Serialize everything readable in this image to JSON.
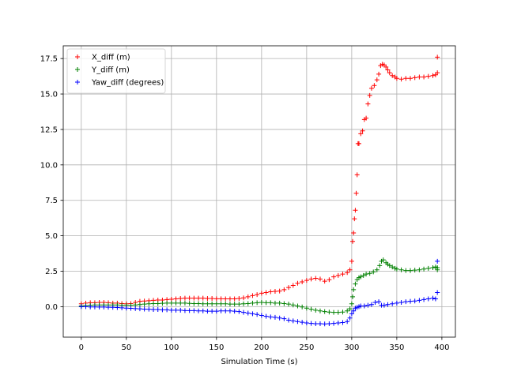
{
  "chart_data": {
    "type": "scatter",
    "xlabel": "Simulation Time (s)",
    "ylabel": "",
    "xlim": [
      -20,
      415
    ],
    "ylim": [
      -2.15,
      18.4
    ],
    "xticks": [
      0,
      50,
      100,
      150,
      200,
      250,
      300,
      350,
      400
    ],
    "xtick_labels": [
      "0",
      "50",
      "100",
      "150",
      "200",
      "250",
      "300",
      "350",
      "400"
    ],
    "yticks": [
      0.0,
      2.5,
      5.0,
      7.5,
      10.0,
      12.5,
      15.0,
      17.5
    ],
    "ytick_labels": [
      "0.0",
      "2.5",
      "5.0",
      "7.5",
      "10.0",
      "12.5",
      "15.0",
      "17.5"
    ],
    "grid": true,
    "legend_position": "top-left",
    "marker": "+",
    "series": [
      {
        "name": "X_diff (m)",
        "color": "#ff0000",
        "x": [
          0,
          5,
          10,
          15,
          20,
          25,
          30,
          35,
          40,
          45,
          50,
          55,
          60,
          65,
          70,
          75,
          80,
          85,
          90,
          95,
          100,
          105,
          110,
          115,
          120,
          125,
          130,
          135,
          140,
          145,
          150,
          155,
          160,
          165,
          170,
          175,
          180,
          185,
          190,
          195,
          200,
          205,
          210,
          215,
          220,
          225,
          230,
          235,
          240,
          245,
          250,
          255,
          260,
          265,
          270,
          275,
          280,
          285,
          290,
          295,
          298,
          300,
          301,
          302,
          303,
          304,
          305,
          306,
          307,
          308,
          310,
          312,
          314,
          316,
          318,
          320,
          322,
          325,
          328,
          330,
          332,
          334,
          336,
          338,
          340,
          342,
          345,
          348,
          350,
          355,
          360,
          365,
          370,
          375,
          380,
          385,
          390,
          393,
          395,
          395
        ],
        "y": [
          0.2,
          0.25,
          0.28,
          0.28,
          0.3,
          0.3,
          0.28,
          0.25,
          0.25,
          0.22,
          0.2,
          0.22,
          0.3,
          0.38,
          0.4,
          0.42,
          0.45,
          0.47,
          0.47,
          0.5,
          0.52,
          0.55,
          0.58,
          0.6,
          0.6,
          0.6,
          0.6,
          0.6,
          0.58,
          0.58,
          0.56,
          0.56,
          0.55,
          0.55,
          0.55,
          0.58,
          0.62,
          0.7,
          0.78,
          0.85,
          0.95,
          1.0,
          1.05,
          1.08,
          1.1,
          1.2,
          1.35,
          1.5,
          1.65,
          1.75,
          1.85,
          1.95,
          2.0,
          1.95,
          1.8,
          1.9,
          2.1,
          2.2,
          2.3,
          2.4,
          2.6,
          3.2,
          4.6,
          5.2,
          6.2,
          6.8,
          8.0,
          9.3,
          11.5,
          11.5,
          12.2,
          12.4,
          13.2,
          13.3,
          14.3,
          14.9,
          15.4,
          15.6,
          16.0,
          16.4,
          17.0,
          17.1,
          17.05,
          16.9,
          16.7,
          16.5,
          16.3,
          16.2,
          16.1,
          16.05,
          16.1,
          16.1,
          16.15,
          16.2,
          16.2,
          16.25,
          16.3,
          16.35,
          16.5,
          17.6
        ]
      },
      {
        "name": "Y_diff (m)",
        "color": "#008000",
        "x": [
          0,
          5,
          10,
          15,
          20,
          25,
          30,
          35,
          40,
          45,
          50,
          55,
          60,
          65,
          70,
          75,
          80,
          85,
          90,
          95,
          100,
          105,
          110,
          115,
          120,
          125,
          130,
          135,
          140,
          145,
          150,
          155,
          160,
          165,
          170,
          175,
          180,
          185,
          190,
          195,
          200,
          205,
          210,
          215,
          220,
          225,
          230,
          235,
          240,
          245,
          250,
          255,
          260,
          265,
          270,
          275,
          280,
          285,
          290,
          295,
          298,
          300,
          301,
          302,
          304,
          306,
          308,
          310,
          313,
          316,
          320,
          324,
          328,
          331,
          333,
          335,
          338,
          340,
          342,
          345,
          348,
          350,
          355,
          360,
          365,
          370,
          375,
          380,
          385,
          390,
          393,
          395,
          395
        ],
        "y": [
          0.05,
          0.08,
          0.1,
          0.12,
          0.12,
          0.12,
          0.12,
          0.12,
          0.12,
          0.1,
          0.1,
          0.1,
          0.12,
          0.15,
          0.18,
          0.2,
          0.22,
          0.22,
          0.24,
          0.25,
          0.25,
          0.25,
          0.25,
          0.25,
          0.23,
          0.22,
          0.22,
          0.2,
          0.2,
          0.2,
          0.2,
          0.2,
          0.2,
          0.18,
          0.18,
          0.18,
          0.2,
          0.22,
          0.25,
          0.28,
          0.3,
          0.28,
          0.28,
          0.25,
          0.25,
          0.22,
          0.18,
          0.12,
          0.05,
          -0.02,
          -0.1,
          -0.18,
          -0.25,
          -0.3,
          -0.35,
          -0.38,
          -0.4,
          -0.4,
          -0.38,
          -0.3,
          -0.15,
          0.2,
          0.7,
          1.2,
          1.6,
          1.9,
          2.05,
          2.1,
          2.2,
          2.3,
          2.35,
          2.45,
          2.6,
          2.9,
          3.2,
          3.3,
          3.1,
          3.0,
          2.9,
          2.8,
          2.7,
          2.65,
          2.6,
          2.55,
          2.55,
          2.58,
          2.6,
          2.65,
          2.7,
          2.75,
          2.8,
          2.75,
          2.6
        ]
      },
      {
        "name": "Yaw_diff (degrees)",
        "color": "#0000ff",
        "x": [
          0,
          5,
          10,
          15,
          20,
          25,
          30,
          35,
          40,
          45,
          50,
          55,
          60,
          65,
          70,
          75,
          80,
          85,
          90,
          95,
          100,
          105,
          110,
          115,
          120,
          125,
          130,
          135,
          140,
          145,
          150,
          155,
          160,
          165,
          170,
          175,
          180,
          185,
          190,
          195,
          200,
          205,
          210,
          215,
          220,
          225,
          230,
          235,
          240,
          245,
          250,
          255,
          260,
          265,
          270,
          275,
          280,
          285,
          290,
          295,
          298,
          300,
          302,
          304,
          306,
          308,
          310,
          314,
          318,
          322,
          326,
          330,
          333,
          336,
          340,
          345,
          350,
          355,
          360,
          365,
          370,
          375,
          380,
          385,
          390,
          393,
          395,
          395
        ],
        "y": [
          0.0,
          0.0,
          -0.02,
          -0.02,
          -0.03,
          -0.03,
          -0.04,
          -0.05,
          -0.06,
          -0.08,
          -0.1,
          -0.12,
          -0.14,
          -0.15,
          -0.17,
          -0.18,
          -0.2,
          -0.2,
          -0.22,
          -0.22,
          -0.25,
          -0.25,
          -0.25,
          -0.28,
          -0.28,
          -0.28,
          -0.3,
          -0.3,
          -0.32,
          -0.32,
          -0.32,
          -0.3,
          -0.3,
          -0.3,
          -0.32,
          -0.35,
          -0.4,
          -0.45,
          -0.5,
          -0.55,
          -0.62,
          -0.68,
          -0.72,
          -0.75,
          -0.8,
          -0.85,
          -0.95,
          -1.0,
          -1.05,
          -1.1,
          -1.15,
          -1.18,
          -1.2,
          -1.2,
          -1.22,
          -1.2,
          -1.18,
          -1.15,
          -1.12,
          -1.05,
          -0.8,
          -0.5,
          -0.3,
          -0.1,
          -0.05,
          0.0,
          0.05,
          0.05,
          0.1,
          0.15,
          0.3,
          0.35,
          0.1,
          0.1,
          0.15,
          0.2,
          0.25,
          0.3,
          0.35,
          0.38,
          0.4,
          0.45,
          0.5,
          0.55,
          0.6,
          0.55,
          1.0,
          3.2
        ]
      }
    ]
  }
}
